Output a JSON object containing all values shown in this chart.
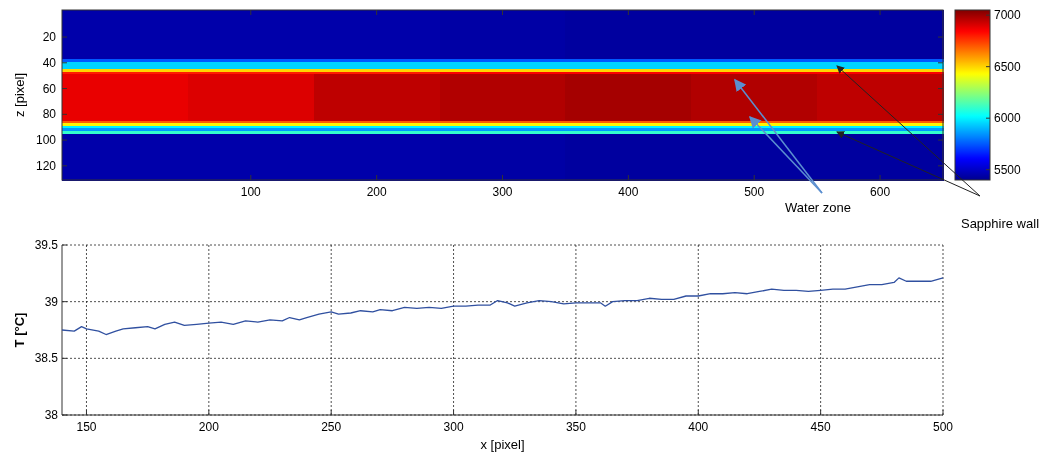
{
  "chart_data": [
    {
      "type": "heatmap",
      "ylabel": "z [pixel]",
      "categories": [
        null,
        "100",
        "200",
        "300",
        "400",
        "500",
        "600"
      ],
      "y_categories": [
        null,
        null,
        null,
        null,
        null,
        null,
        null,
        null,
        null,
        null,
        "20",
        null,
        null,
        null,
        null,
        null,
        null,
        null,
        null,
        null,
        "40",
        null,
        null,
        null,
        null,
        null,
        null,
        null,
        null,
        null,
        "60",
        null,
        null,
        null,
        null,
        null,
        null,
        null,
        null,
        null,
        "80",
        null,
        null,
        null,
        null,
        null,
        null,
        null,
        null,
        null,
        "100",
        null,
        null,
        null,
        null,
        null,
        null,
        null,
        null,
        null,
        "120",
        null,
        null,
        null,
        null,
        null
      ],
      "cells": [
        [
          5450,
          5450,
          5450,
          5440,
          5430,
          5430,
          5430
        ],
        [
          5450,
          5450,
          5450,
          5440,
          5430,
          5430,
          5430
        ],
        [
          5450,
          5450,
          5450,
          5440,
          5430,
          5430,
          5430
        ],
        [
          5450,
          5450,
          5450,
          5440,
          5430,
          5430,
          5430
        ],
        [
          5450,
          5450,
          5450,
          5440,
          5430,
          5430,
          5430
        ],
        [
          5450,
          5450,
          5450,
          5440,
          5430,
          5430,
          5430
        ],
        [
          5450,
          5450,
          5450,
          5440,
          5430,
          5430,
          5430
        ],
        [
          5450,
          5450,
          5450,
          5440,
          5430,
          5430,
          5430
        ],
        [
          5450,
          5450,
          5450,
          5440,
          5430,
          5430,
          5430
        ],
        [
          5450,
          5450,
          5450,
          5440,
          5430,
          5430,
          5430
        ],
        [
          5450,
          5450,
          5450,
          5440,
          5430,
          5430,
          5430
        ],
        [
          5450,
          5450,
          5450,
          5440,
          5430,
          5430,
          5430
        ],
        [
          5450,
          5450,
          5450,
          5440,
          5430,
          5430,
          5430
        ],
        [
          5450,
          5450,
          5450,
          5440,
          5430,
          5430,
          5430
        ],
        [
          5450,
          5450,
          5450,
          5440,
          5430,
          5430,
          5430
        ],
        [
          5450,
          5450,
          5450,
          5440,
          5430,
          5430,
          5430
        ],
        [
          5450,
          5450,
          5450,
          5440,
          5430,
          5430,
          5430
        ],
        [
          5450,
          5450,
          5450,
          5440,
          5430,
          5430,
          5430
        ],
        [
          5450,
          5450,
          5450,
          5440,
          5430,
          5430,
          5430
        ],
        [
          5750,
          5750,
          5750,
          5750,
          5750,
          5750,
          5750
        ],
        [
          5950,
          5950,
          5950,
          5950,
          5950,
          5950,
          5950
        ],
        [
          5950,
          5950,
          5950,
          5950,
          5950,
          5950,
          5950
        ],
        [
          5950,
          5950,
          5950,
          5950,
          5950,
          5950,
          5950
        ],
        [
          6500,
          6500,
          6500,
          6500,
          6500,
          6500,
          6500
        ],
        [
          6800,
          6800,
          6800,
          6850,
          6850,
          6850,
          6850
        ],
        [
          6880,
          6900,
          6950,
          6970,
          6990,
          6970,
          6950
        ],
        [
          6880,
          6900,
          6950,
          6970,
          6990,
          6970,
          6950
        ],
        [
          6880,
          6900,
          6950,
          6970,
          6990,
          6970,
          6950
        ],
        [
          6880,
          6900,
          6950,
          6970,
          6990,
          6970,
          6950
        ],
        [
          6880,
          6900,
          6950,
          6970,
          6990,
          6970,
          6950
        ],
        [
          6880,
          6900,
          6950,
          6970,
          6990,
          6970,
          6950
        ],
        [
          6880,
          6900,
          6950,
          6970,
          6990,
          6970,
          6950
        ],
        [
          6880,
          6900,
          6950,
          6970,
          6990,
          6970,
          6950
        ],
        [
          6880,
          6900,
          6950,
          6970,
          6990,
          6970,
          6950
        ],
        [
          6880,
          6900,
          6950,
          6970,
          6990,
          6970,
          6950
        ],
        [
          6880,
          6900,
          6950,
          6970,
          6990,
          6970,
          6950
        ],
        [
          6880,
          6900,
          6950,
          6970,
          6990,
          6970,
          6950
        ],
        [
          6880,
          6900,
          6950,
          6970,
          6990,
          6970,
          6950
        ],
        [
          6880,
          6900,
          6950,
          6970,
          6990,
          6970,
          6950
        ],
        [
          6880,
          6900,
          6950,
          6970,
          6990,
          6970,
          6950
        ],
        [
          6880,
          6900,
          6950,
          6970,
          6990,
          6970,
          6950
        ],
        [
          6880,
          6900,
          6950,
          6970,
          6990,
          6970,
          6950
        ],
        [
          6880,
          6900,
          6950,
          6970,
          6990,
          6970,
          6950
        ],
        [
          6700,
          6700,
          6700,
          6700,
          6700,
          6700,
          6700
        ],
        [
          6450,
          6450,
          6450,
          6450,
          6450,
          6450,
          6450
        ],
        [
          6000,
          6000,
          6000,
          6000,
          6000,
          6000,
          6000
        ],
        [
          5850,
          5850,
          5850,
          5850,
          5850,
          5850,
          5850
        ],
        [
          6100,
          6100,
          6100,
          6100,
          6100,
          6100,
          6100
        ],
        [
          5450,
          5450,
          5450,
          5440,
          5430,
          5430,
          5430
        ],
        [
          5450,
          5450,
          5450,
          5440,
          5430,
          5430,
          5430
        ],
        [
          5450,
          5450,
          5450,
          5440,
          5430,
          5430,
          5430
        ],
        [
          5450,
          5450,
          5450,
          5440,
          5430,
          5430,
          5430
        ],
        [
          5450,
          5450,
          5450,
          5440,
          5430,
          5430,
          5430
        ],
        [
          5450,
          5450,
          5450,
          5440,
          5430,
          5430,
          5430
        ],
        [
          5450,
          5450,
          5450,
          5440,
          5430,
          5430,
          5430
        ],
        [
          5450,
          5450,
          5450,
          5440,
          5430,
          5430,
          5430
        ],
        [
          5450,
          5450,
          5450,
          5440,
          5430,
          5430,
          5430
        ],
        [
          5450,
          5450,
          5450,
          5440,
          5430,
          5430,
          5430
        ],
        [
          5450,
          5450,
          5450,
          5440,
          5430,
          5430,
          5430
        ],
        [
          5450,
          5450,
          5450,
          5440,
          5430,
          5430,
          5430
        ],
        [
          5450,
          5450,
          5450,
          5440,
          5430,
          5430,
          5430
        ],
        [
          5450,
          5450,
          5450,
          5440,
          5430,
          5430,
          5430
        ],
        [
          5450,
          5450,
          5450,
          5440,
          5430,
          5430,
          5430
        ],
        [
          5450,
          5450,
          5450,
          5440,
          5430,
          5430,
          5430
        ],
        [
          5450,
          5450,
          5450,
          5440,
          5430,
          5430,
          5430
        ],
        [
          5450,
          5450,
          5450,
          5440,
          5430,
          5430,
          5430
        ]
      ],
      "clim": [
        5400,
        7050
      ],
      "cticks": [
        5500,
        6000,
        6500,
        7000
      ],
      "annotations": [
        "Water zone",
        "Sapphire wall"
      ]
    },
    {
      "type": "line",
      "xlabel": "x [pixel]",
      "ylabel": "T [°C]",
      "xlim": [
        140,
        500
      ],
      "xticks": [
        150,
        200,
        250,
        300,
        350,
        400,
        450,
        500
      ],
      "ylim": [
        38,
        39.5
      ],
      "yticks": [
        38,
        38.5,
        39,
        39.5
      ],
      "grid": true,
      "line_style": "solid",
      "series": [
        {
          "color": "#3050a0",
          "x": [
            140,
            145,
            148,
            150,
            155,
            158,
            162,
            165,
            170,
            175,
            178,
            182,
            186,
            190,
            195,
            200,
            205,
            210,
            215,
            220,
            225,
            230,
            233,
            237,
            240,
            245,
            250,
            253,
            258,
            262,
            267,
            270,
            275,
            280,
            285,
            290,
            295,
            300,
            305,
            310,
            315,
            318,
            322,
            325,
            330,
            335,
            340,
            345,
            350,
            355,
            360,
            362,
            365,
            370,
            375,
            380,
            385,
            390,
            395,
            400,
            405,
            410,
            415,
            420,
            425,
            430,
            435,
            440,
            445,
            450,
            455,
            460,
            465,
            470,
            475,
            480,
            482,
            485,
            490,
            495,
            500
          ],
          "values": [
            38.75,
            38.74,
            38.78,
            38.76,
            38.74,
            38.71,
            38.74,
            38.76,
            38.77,
            38.78,
            38.76,
            38.8,
            38.82,
            38.79,
            38.8,
            38.81,
            38.82,
            38.8,
            38.83,
            38.82,
            38.84,
            38.83,
            38.86,
            38.84,
            38.86,
            38.89,
            38.91,
            38.89,
            38.9,
            38.92,
            38.91,
            38.93,
            38.92,
            38.95,
            38.94,
            38.95,
            38.94,
            38.96,
            38.96,
            38.97,
            38.97,
            39.01,
            38.99,
            38.96,
            38.99,
            39.01,
            39,
            38.98,
            38.99,
            38.99,
            38.99,
            38.96,
            39,
            39.01,
            39.01,
            39.03,
            39.02,
            39.02,
            39.05,
            39.05,
            39.07,
            39.07,
            39.08,
            39.07,
            39.09,
            39.11,
            39.1,
            39.1,
            39.09,
            39.1,
            39.11,
            39.11,
            39.13,
            39.15,
            39.15,
            39.17,
            39.21,
            39.18,
            39.18,
            39.18,
            39.21
          ]
        }
      ]
    }
  ]
}
